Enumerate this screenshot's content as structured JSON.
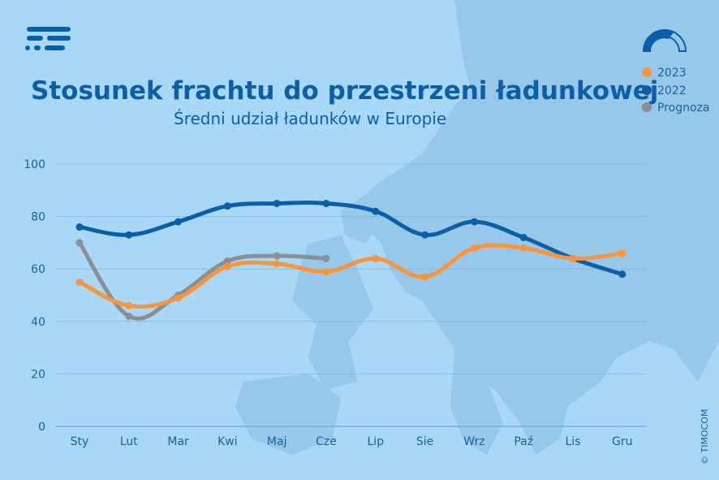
{
  "header": {
    "title": "Stosunek frachtu do przestrzeni ładunkowej",
    "subtitle": "Średni udział ładunków w Europie"
  },
  "logo": {
    "icon": "timocom-logo-icon"
  },
  "gauge": {
    "icon": "gauge-icon"
  },
  "copyright": "© TIMOCOM",
  "colors": {
    "background": "#a9d8f6",
    "map": "#97c8ea",
    "grid": "#7fb6df",
    "series_2023": "#f7943c",
    "series_2022": "#0b5ea8",
    "series_prognoza": "#8a8f95",
    "text": "#1c5f98"
  },
  "chart_data": {
    "type": "line",
    "title": "Stosunek frachtu do przestrzeni ładunkowej",
    "subtitle": "Średni udział ładunków w Europie",
    "xlabel": "",
    "ylabel": "",
    "categories": [
      "Sty",
      "Lut",
      "Mar",
      "Kwi",
      "Maj",
      "Cze",
      "Lip",
      "Sie",
      "Wrz",
      "Paź",
      "Lis",
      "Gru"
    ],
    "ylim": [
      0,
      100
    ],
    "yticks": [
      "0",
      "20",
      "40",
      "60",
      "80",
      "100"
    ],
    "grid": true,
    "legend_position": "top-right",
    "series": [
      {
        "name": "2023",
        "color": "#f7943c",
        "values": [
          55,
          46,
          49,
          61,
          62,
          59,
          64,
          57,
          68,
          68,
          64,
          66
        ]
      },
      {
        "name": "2022",
        "color": "#0b5ea8",
        "values": [
          76,
          73,
          78,
          84,
          85,
          85,
          82,
          73,
          78,
          72,
          64,
          58
        ]
      },
      {
        "name": "Prognoza",
        "color": "#8a8f95",
        "values": [
          70,
          42,
          50,
          63,
          65,
          64,
          null,
          null,
          null,
          null,
          null,
          null
        ]
      }
    ]
  }
}
